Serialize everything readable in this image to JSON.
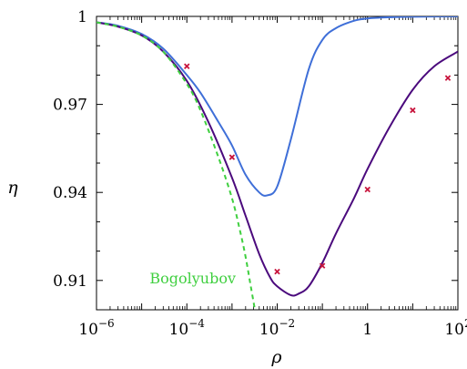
{
  "chart_data": {
    "type": "line",
    "title": "",
    "xlabel": "ρ",
    "ylabel": "η",
    "x_scale": "log",
    "xlim": [
      1e-06,
      100
    ],
    "ylim": [
      0.9,
      1.0
    ],
    "x_ticks": [
      {
        "value": 1e-06,
        "base": "10",
        "exp": "−6"
      },
      {
        "value": 0.0001,
        "base": "10",
        "exp": "−4"
      },
      {
        "value": 0.01,
        "base": "10",
        "exp": "−2"
      },
      {
        "value": 1,
        "base": "1",
        "exp": ""
      },
      {
        "value": 100,
        "base": "10",
        "exp": "2"
      }
    ],
    "y_ticks": [
      {
        "value": 1.0,
        "label": "1"
      },
      {
        "value": 0.97,
        "label": "0.97"
      },
      {
        "value": 0.94,
        "label": "0.94"
      },
      {
        "value": 0.91,
        "label": "0.91"
      }
    ],
    "grid": false,
    "series": [
      {
        "kind": "line",
        "color": "#3f6fd8",
        "x": [
          1e-06,
          3e-06,
          1e-05,
          3e-05,
          0.0001,
          0.0002,
          0.0005,
          0.001,
          0.002,
          0.004,
          0.006,
          0.01,
          0.02,
          0.05,
          0.1,
          0.2,
          0.5,
          1,
          3,
          10,
          100
        ],
        "y": [
          0.998,
          0.9968,
          0.994,
          0.989,
          0.98,
          0.974,
          0.964,
          0.956,
          0.946,
          0.94,
          0.939,
          0.942,
          0.958,
          0.982,
          0.992,
          0.996,
          0.9985,
          0.9993,
          0.9997,
          0.9999,
          1.0
        ]
      },
      {
        "kind": "line",
        "color": "#4b0a7d",
        "x": [
          1e-06,
          3e-06,
          1e-05,
          3e-05,
          0.0001,
          0.0003,
          0.001,
          0.002,
          0.004,
          0.007,
          0.01,
          0.02,
          0.03,
          0.05,
          0.1,
          0.2,
          0.5,
          1,
          3,
          10,
          30,
          100
        ],
        "y": [
          0.998,
          0.9965,
          0.9935,
          0.988,
          0.978,
          0.964,
          0.945,
          0.932,
          0.919,
          0.911,
          0.908,
          0.905,
          0.9055,
          0.908,
          0.916,
          0.926,
          0.938,
          0.948,
          0.962,
          0.975,
          0.983,
          0.988
        ]
      },
      {
        "kind": "dashed",
        "color": "#3fcf3f",
        "name": "Bogolyubov",
        "x": [
          1e-06,
          3e-06,
          1e-05,
          3e-05,
          0.0001,
          0.0002,
          0.0005,
          0.001,
          0.0015,
          0.002,
          0.0026,
          0.0033
        ],
        "y": [
          0.998,
          0.9965,
          0.9935,
          0.988,
          0.977,
          0.968,
          0.952,
          0.938,
          0.927,
          0.918,
          0.908,
          0.899
        ]
      },
      {
        "kind": "markers",
        "color": "#c8143c",
        "x": [
          0.0001,
          0.001,
          0.01,
          0.1,
          1,
          10,
          60
        ],
        "y": [
          0.983,
          0.952,
          0.913,
          0.915,
          0.941,
          0.968,
          0.979
        ]
      }
    ],
    "annotations": [
      {
        "text": "Bogolyubov",
        "x": 1.5e-05,
        "y": 0.909,
        "color": "#3fcf3f"
      }
    ]
  }
}
